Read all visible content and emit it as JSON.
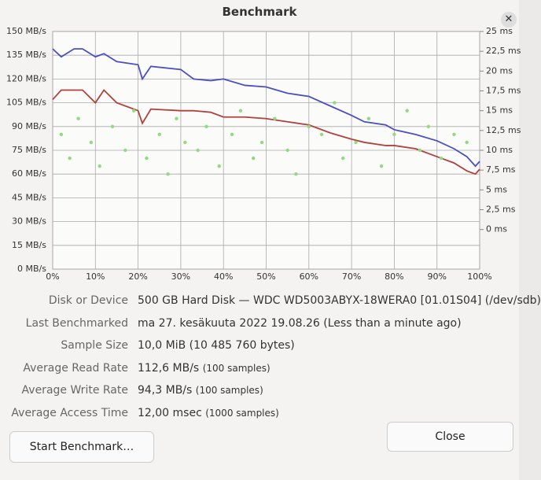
{
  "window": {
    "title": "Benchmark"
  },
  "chart_data": {
    "type": "line",
    "grid": true,
    "x": [
      0,
      2,
      5,
      7,
      10,
      12,
      15,
      20,
      21,
      23,
      30,
      33,
      37,
      40,
      45,
      50,
      55,
      60,
      65,
      70,
      73,
      78,
      80,
      85,
      90,
      94,
      97,
      99,
      100
    ],
    "xlim": [
      0,
      100
    ],
    "xticks": [
      {
        "value": 0,
        "label": "0%"
      },
      {
        "value": 10,
        "label": "10%"
      },
      {
        "value": 20,
        "label": "20%"
      },
      {
        "value": 30,
        "label": "30%"
      },
      {
        "value": 40,
        "label": "40%"
      },
      {
        "value": 50,
        "label": "50%"
      },
      {
        "value": 60,
        "label": "60%"
      },
      {
        "value": 70,
        "label": "70%"
      },
      {
        "value": 80,
        "label": "80%"
      },
      {
        "value": 90,
        "label": "90%"
      },
      {
        "value": 100,
        "label": "100%"
      }
    ],
    "ylim": [
      0,
      150
    ],
    "yticks": [
      {
        "value": 0,
        "label": "0 MB/s"
      },
      {
        "value": 15,
        "label": "15 MB/s"
      },
      {
        "value": 30,
        "label": "30 MB/s"
      },
      {
        "value": 45,
        "label": "45 MB/s"
      },
      {
        "value": 60,
        "label": "60 MB/s"
      },
      {
        "value": 75,
        "label": "75 MB/s"
      },
      {
        "value": 90,
        "label": "90 MB/s"
      },
      {
        "value": 105,
        "label": "105 MB/s"
      },
      {
        "value": 120,
        "label": "120 MB/s"
      },
      {
        "value": 135,
        "label": "135 MB/s"
      },
      {
        "value": 150,
        "label": "150 MB/s"
      }
    ],
    "y2lim": [
      -5,
      25
    ],
    "y2ticks": [
      {
        "value": 0,
        "label": "0 ms"
      },
      {
        "value": 2.5,
        "label": "2,5 ms"
      },
      {
        "value": 5,
        "label": "5 ms"
      },
      {
        "value": 7.5,
        "label": "7,5 ms"
      },
      {
        "value": 10,
        "label": "10 ms"
      },
      {
        "value": 12.5,
        "label": "12,5 ms"
      },
      {
        "value": 15,
        "label": "15 ms"
      },
      {
        "value": 17.5,
        "label": "17,5 ms"
      },
      {
        "value": 20,
        "label": "20 ms"
      },
      {
        "value": 22.5,
        "label": "22,5 ms"
      },
      {
        "value": 25,
        "label": "25 ms"
      }
    ],
    "series": [
      {
        "color": "#4a4fc4",
        "values": [
          139,
          134,
          139,
          139,
          134,
          136,
          131,
          129,
          120,
          128,
          126,
          120,
          119,
          120,
          116,
          115,
          111,
          109,
          103,
          97,
          93,
          91,
          88,
          85,
          81,
          76,
          71,
          65,
          68
        ]
      },
      {
        "color": "#b0413e",
        "values": [
          107,
          113,
          113,
          113,
          105,
          113,
          105,
          100,
          92,
          101,
          100,
          100,
          99,
          96,
          96,
          95,
          93,
          91,
          86,
          82,
          80,
          78,
          78,
          76,
          71,
          67,
          62,
          60,
          63
        ]
      },
      {
        "type": "scatter",
        "axis": "y2",
        "color": "#8fdc7f",
        "x": [
          2,
          4,
          6,
          9,
          11,
          14,
          17,
          19,
          22,
          25,
          27,
          29,
          31,
          34,
          36,
          39,
          42,
          44,
          47,
          49,
          52,
          55,
          57,
          60,
          63,
          66,
          68,
          71,
          74,
          77,
          80,
          83,
          86,
          88,
          91,
          94,
          97
        ],
        "values": [
          12,
          9,
          14,
          11,
          8,
          13,
          10,
          15,
          9,
          12,
          7,
          14,
          11,
          10,
          13,
          8,
          12,
          15,
          9,
          11,
          14,
          10,
          7,
          13,
          12,
          16,
          9,
          11,
          14,
          8,
          12,
          15,
          10,
          13,
          9,
          12,
          11
        ]
      }
    ]
  },
  "info": [
    {
      "label": "Disk or Device",
      "value": "500 GB Hard Disk — WDC WD5003ABYX-18WERA0 [01.01S04] (/dev/sdb)"
    },
    {
      "label": "Last Benchmarked",
      "value": "ma 27. kesäkuuta 2022 19.08.26 (Less than a minute ago)"
    },
    {
      "label": "Sample Size",
      "value": "10,0 MiB (10 485 760 bytes)"
    },
    {
      "label": "Average Read Rate",
      "value": "112,6 MB/s",
      "note": "(100 samples)"
    },
    {
      "label": "Average Write Rate",
      "value": "94,3 MB/s",
      "note": "(100 samples)"
    },
    {
      "label": "Average Access Time",
      "value": "12,00 msec",
      "note": "(1000 samples)"
    }
  ],
  "buttons": {
    "start": "Start Benchmark…",
    "close": "Close"
  }
}
